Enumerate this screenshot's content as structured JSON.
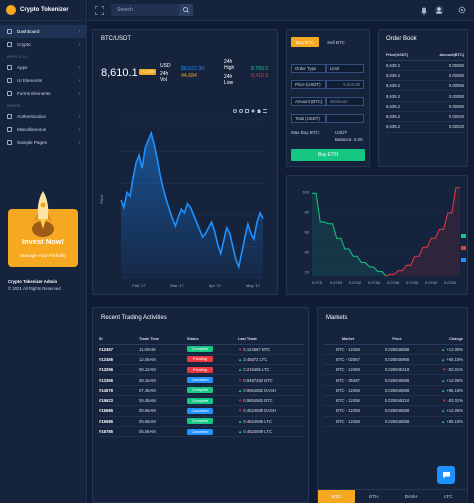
{
  "app": {
    "title": "Crypto Tokenizer"
  },
  "topbar": {
    "search_placeholder": "Search"
  },
  "sidebar": {
    "items_top": [
      {
        "label": "Dashboard"
      },
      {
        "label": "Crypto"
      }
    ],
    "section_apps": "APPS & UI",
    "items_apps": [
      {
        "label": "Apps"
      },
      {
        "label": "UI Elements"
      },
      {
        "label": "Forms Elements"
      }
    ],
    "section_pages": "PAGES",
    "items_pages": [
      {
        "label": "Authentication"
      },
      {
        "label": "Miscellaneous"
      },
      {
        "label": "Sample Pages"
      }
    ],
    "promo": {
      "title": "Invest Now!",
      "subtitle": "Manage Your Portfolio"
    },
    "footer": {
      "name": "Crypto Tokenizer Admin",
      "copyright": "© 2021 All Rights Reserved"
    }
  },
  "ticker": {
    "pair": "BTC/USDT",
    "price": "8,610.1",
    "change_badge": "+0.23%",
    "usd_label": "USD",
    "vol_label": "24h Vol",
    "usd_value": "$8,622.30",
    "vol_value": "44,684",
    "high_label": "24h High",
    "low_label": "24h Low",
    "high_value": "8,760.5",
    "low_value": "8,415.6"
  },
  "chart_data": {
    "type": "area",
    "title": "",
    "xlabel": "",
    "ylabel": "Price",
    "x_ticks": [
      "Feb '17",
      "Mar '17",
      "Apr '17",
      "May '17"
    ],
    "values": [
      62,
      58,
      66,
      64,
      74,
      82,
      86,
      79,
      90,
      94,
      98,
      92,
      84,
      75,
      68,
      62,
      57,
      52,
      48,
      53,
      57,
      55,
      60,
      58,
      54,
      50,
      46,
      42,
      44,
      47,
      50,
      45,
      38,
      33,
      40,
      47,
      44,
      37,
      30,
      26,
      34,
      42,
      49,
      44,
      41,
      50,
      55,
      52
    ],
    "ylim": [
      20,
      105
    ],
    "grid": true,
    "color": "#1e90ff"
  },
  "order": {
    "tabs": [
      "Buy BTC",
      "Sell BTC"
    ],
    "type_label": "Order Type",
    "type_value": "Limit",
    "price_label": "Price (USDT)",
    "price_placeholder": "8,520.00",
    "amount_label": "Amount (BTC)",
    "amount_placeholder": "Minimum ·",
    "total_label": "Total (USDT)",
    "max_label": "Max Buy BTC:",
    "max_unit": "USDT",
    "balance_label": "Balance: 0.00",
    "buy_button": "Buy ETH"
  },
  "orderbook": {
    "title": "Order Book",
    "headers": [
      "Price(USDT)",
      "Amount(BTC)"
    ],
    "rows": [
      [
        "8,639.2",
        "0.00050"
      ],
      [
        "8,639.2",
        "0.00050"
      ],
      [
        "8,639.2",
        "0.00056"
      ],
      [
        "8,639.2",
        "0.00050"
      ],
      [
        "8,639.2",
        "0.00050"
      ],
      [
        "8,639.2",
        "0.00020"
      ],
      [
        "8,639.2",
        "0.00020"
      ]
    ]
  },
  "depth_chart": {
    "x_ticks": [
      "0.075",
      "0.0750",
      "0.0752",
      "0.0754",
      "0.0756",
      "0.0758",
      "0.0760",
      "0.0762"
    ],
    "y_ticks": [
      "100",
      "80",
      "60",
      "40",
      "20"
    ],
    "bid_color": "#16c784",
    "ask_color": "#ea3943",
    "bids": [
      92,
      92,
      60,
      60,
      58,
      58,
      42,
      42,
      30,
      30,
      22,
      22,
      15,
      15,
      10,
      10,
      5,
      5,
      0
    ],
    "asks": [
      0,
      2,
      2,
      6,
      6,
      12,
      12,
      22,
      22,
      32,
      32,
      42,
      42,
      52,
      52,
      70,
      70,
      98,
      98
    ]
  },
  "trading": {
    "title": "Recent Trading Activities",
    "headers": [
      "ID",
      "Trade Time",
      "Status",
      "Last Trade"
    ],
    "rows": [
      {
        "id": "#12457",
        "time": "11.00AM",
        "status": "Complete",
        "status_color": "#16c784",
        "dir": "down",
        "trade": "0.124587 BTC"
      },
      {
        "id": "#12456",
        "time": "12.05AM",
        "status": "Pending",
        "status_color": "#ea3943",
        "dir": "up",
        "trade": "3.45872 LTC"
      },
      {
        "id": "#13256",
        "time": "09.12AM",
        "status": "Pending",
        "status_color": "#ea3943",
        "dir": "up",
        "trade": "0.215485 LTC"
      },
      {
        "id": "#13356",
        "time": "08.15AM",
        "status": "Cancelled",
        "status_color": "#1e90ff",
        "dir": "down",
        "trade": "0.8457492 BTC"
      },
      {
        "id": "#14578",
        "time": "07.36AM",
        "status": "Complete",
        "status_color": "#16c784",
        "dir": "up",
        "trade": "0.9654582 DASH"
      },
      {
        "id": "#15623",
        "time": "06.45AM",
        "status": "Complete",
        "status_color": "#16c784",
        "dir": "down",
        "trade": "0.9654582 BTC"
      },
      {
        "id": "#15685",
        "time": "05.56AM",
        "status": "Cancelled",
        "status_color": "#1e90ff",
        "dir": "down",
        "trade": "0.4524589 DASH"
      },
      {
        "id": "#15685",
        "time": "05.56AM",
        "status": "Complete",
        "status_color": "#16c784",
        "dir": "up",
        "trade": "0.4524589 LTC"
      },
      {
        "id": "#16785",
        "time": "05.56AM",
        "status": "Cancelled",
        "status_color": "#1e90ff",
        "dir": "up",
        "trade": "0.4524589 LTC"
      }
    ]
  },
  "markets": {
    "title": "Markets",
    "headers": [
      "Market",
      "Price",
      "Change"
    ],
    "rows": [
      {
        "market": "BTC - 12458",
        "price": "0.025845658",
        "dir": "up",
        "change": "+12.05%"
      },
      {
        "market": "BTC - 02557",
        "price": "0.025846958",
        "dir": "up",
        "change": "+65.15%"
      },
      {
        "market": "BTC - 12458",
        "price": "0.025845218",
        "dir": "down",
        "change": "-02.01%"
      },
      {
        "market": "BTC - 35487",
        "price": "0.025845658",
        "dir": "up",
        "change": "+12.05%"
      },
      {
        "market": "BTC - 12458",
        "price": "0.025845658",
        "dir": "up",
        "change": "+85.15%"
      },
      {
        "market": "BTC - 12458",
        "price": "0.025845218",
        "dir": "down",
        "change": "-02.01%"
      },
      {
        "market": "BTC - 12458",
        "price": "0.025845658",
        "dir": "up",
        "change": "+12.05%"
      },
      {
        "market": "BTC - 12458",
        "price": "0.025845658",
        "dir": "up",
        "change": "+85.15%"
      }
    ],
    "tabs": [
      "BTC",
      "ETH",
      "DASH",
      "LTC"
    ]
  }
}
